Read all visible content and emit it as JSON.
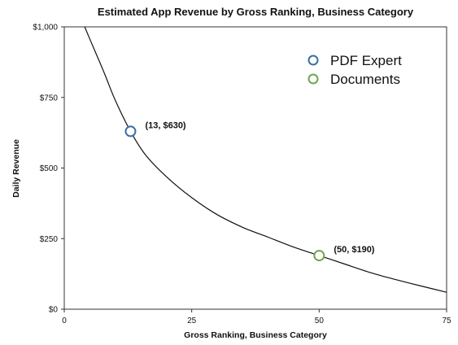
{
  "chart_data": {
    "type": "scatter",
    "title": "Estimated App Revenue by Gross Ranking, Business Category",
    "xlabel": "Gross Ranking, Business Category",
    "ylabel": "Daily Revenue",
    "xlim": [
      0,
      75
    ],
    "ylim": [
      0,
      1000
    ],
    "x_ticks": [
      0,
      25,
      50,
      75
    ],
    "x_tick_labels": [
      "0",
      "25",
      "50",
      "75"
    ],
    "y_ticks": [
      0,
      250,
      500,
      750,
      1000
    ],
    "y_tick_labels": [
      "$0",
      "$250",
      "$500",
      "$750",
      "$1,000"
    ],
    "grid": false,
    "legend_position": "top-right",
    "series": [
      {
        "name": "PDF Expert",
        "color": "#3a6ea5",
        "points": [
          {
            "x": 13,
            "y": 630,
            "label": "(13, $630)"
          }
        ]
      },
      {
        "name": "Documents",
        "color": "#6aa84f",
        "points": [
          {
            "x": 50,
            "y": 190,
            "label": "(50, $190)"
          }
        ]
      }
    ],
    "curve": {
      "type": "power-law fit",
      "color": "#111111",
      "points": [
        [
          4,
          1000
        ],
        [
          6,
          915
        ],
        [
          8,
          830
        ],
        [
          10,
          740
        ],
        [
          13,
          630
        ],
        [
          16,
          545
        ],
        [
          20,
          470
        ],
        [
          25,
          395
        ],
        [
          30,
          335
        ],
        [
          35,
          290
        ],
        [
          40,
          255
        ],
        [
          45,
          220
        ],
        [
          50,
          190
        ],
        [
          55,
          160
        ],
        [
          60,
          130
        ],
        [
          65,
          105
        ],
        [
          70,
          82
        ],
        [
          75,
          60
        ]
      ]
    }
  }
}
